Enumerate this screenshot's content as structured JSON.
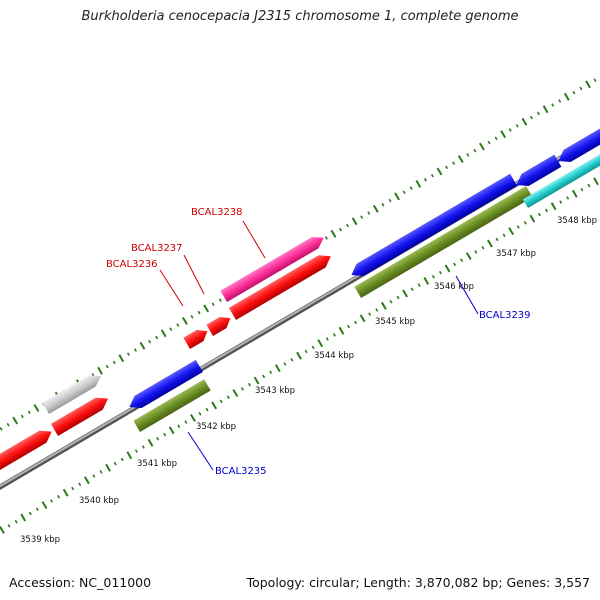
{
  "title": "Burkholderia cenocepacia J2315 chromosome 1, complete genome",
  "footer": {
    "accession_label": "Accession:",
    "accession": "NC_011000",
    "topology_label": "Topology:",
    "topology": "circular",
    "length_label": "Length:",
    "length": "3,870,082 bp",
    "genes_label": "Genes:",
    "genes": "3,557"
  },
  "colors": {
    "backbone": "#8a8a8a",
    "tick_green": "#2a7a1a",
    "forward_red": "#ff1010",
    "pink": "#ff3399",
    "grey_feature": "#c8c8c8",
    "reverse_blue": "#1010ee",
    "olive": "#6b8e23",
    "cyan": "#22cccc",
    "label_red": "#cc0000",
    "label_blue": "#0000cc"
  },
  "ruler": {
    "unit": "kbp",
    "tick_labels": [
      "3539 kbp",
      "3540 kbp",
      "3541 kbp",
      "3542 kbp",
      "3543 kbp",
      "3544 kbp",
      "3545 kbp",
      "3546 kbp",
      "3547 kbp",
      "3548 kbp"
    ]
  },
  "gene_labels": {
    "forward": [
      "BCAL3236",
      "BCAL3237",
      "BCAL3238"
    ],
    "reverse": [
      "BCAL3235",
      "BCAL3239"
    ]
  },
  "features": [
    {
      "name": "",
      "strand": "forward",
      "color": "red"
    },
    {
      "name": "",
      "strand": "forward",
      "color": "red"
    },
    {
      "name": "",
      "strand": "forward",
      "color": "grey"
    },
    {
      "name": "BCAL3236",
      "strand": "forward",
      "color": "red"
    },
    {
      "name": "BCAL3237",
      "strand": "forward",
      "color": "red"
    },
    {
      "name": "BCAL3238",
      "strand": "forward",
      "color": "pink"
    },
    {
      "name": "",
      "strand": "forward",
      "color": "red"
    },
    {
      "name": "BCAL3235",
      "strand": "reverse",
      "color": "blue"
    },
    {
      "name": "",
      "strand": "reverse",
      "color": "olive"
    },
    {
      "name": "BCAL3239",
      "strand": "reverse",
      "color": "blue"
    },
    {
      "name": "",
      "strand": "reverse",
      "color": "olive"
    },
    {
      "name": "",
      "strand": "reverse",
      "color": "blue"
    },
    {
      "name": "",
      "strand": "reverse",
      "color": "blue"
    },
    {
      "name": "",
      "strand": "reverse",
      "color": "cyan"
    }
  ]
}
